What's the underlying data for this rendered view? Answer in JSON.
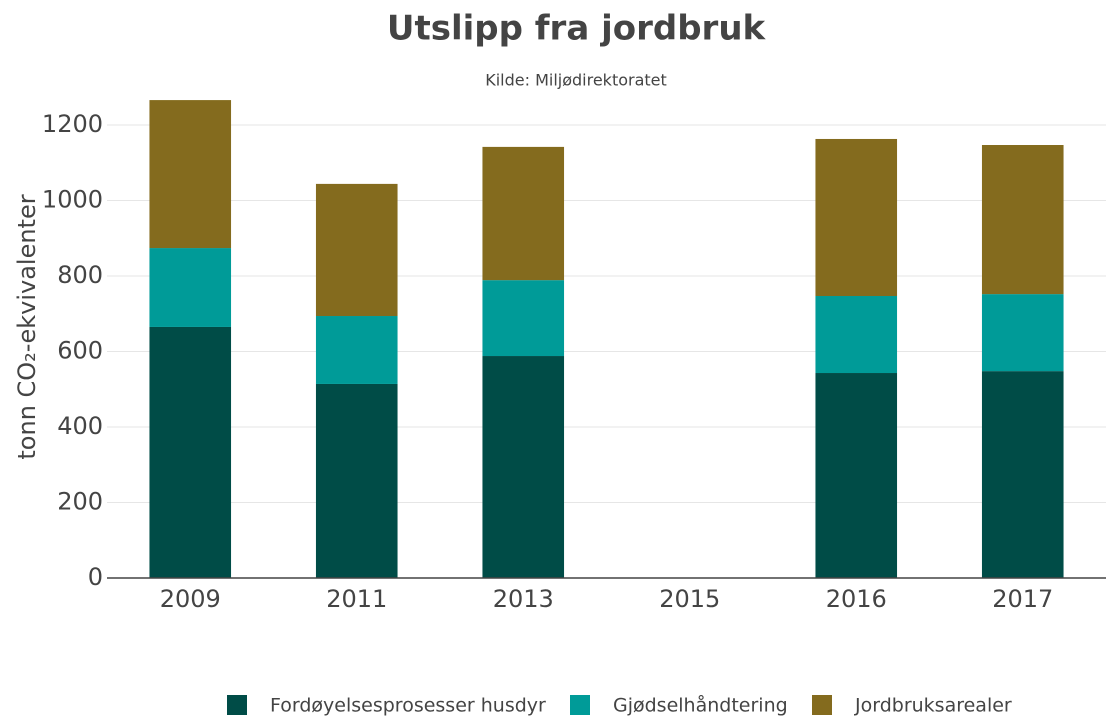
{
  "chart_data": {
    "type": "stacked_bar",
    "title": "Utslipp fra jordbruk",
    "subtitle": "Kilde: Miljødirektoratet",
    "y_label": "tonn CO₂-ekvivalenter",
    "categories": [
      "2009",
      "2011",
      "2013",
      "2015",
      "2016",
      "2017"
    ],
    "series": [
      {
        "name": "Fordøyelsesprosesser husdyr",
        "color": "#004c47",
        "values": [
          665,
          514,
          588,
          null,
          543,
          548
        ]
      },
      {
        "name": "Gjødselhåndtering",
        "color": "#009b98",
        "values": [
          209,
          180,
          201,
          null,
          204,
          204
        ]
      },
      {
        "name": "Jordbruksarealer",
        "color": "#846b1e",
        "values": [
          392,
          350,
          353,
          null,
          416,
          395
        ]
      }
    ],
    "ylim": [
      0,
      1200
    ],
    "yticks": [
      0,
      200,
      400,
      600,
      800,
      1000,
      1200
    ],
    "grid": true
  }
}
